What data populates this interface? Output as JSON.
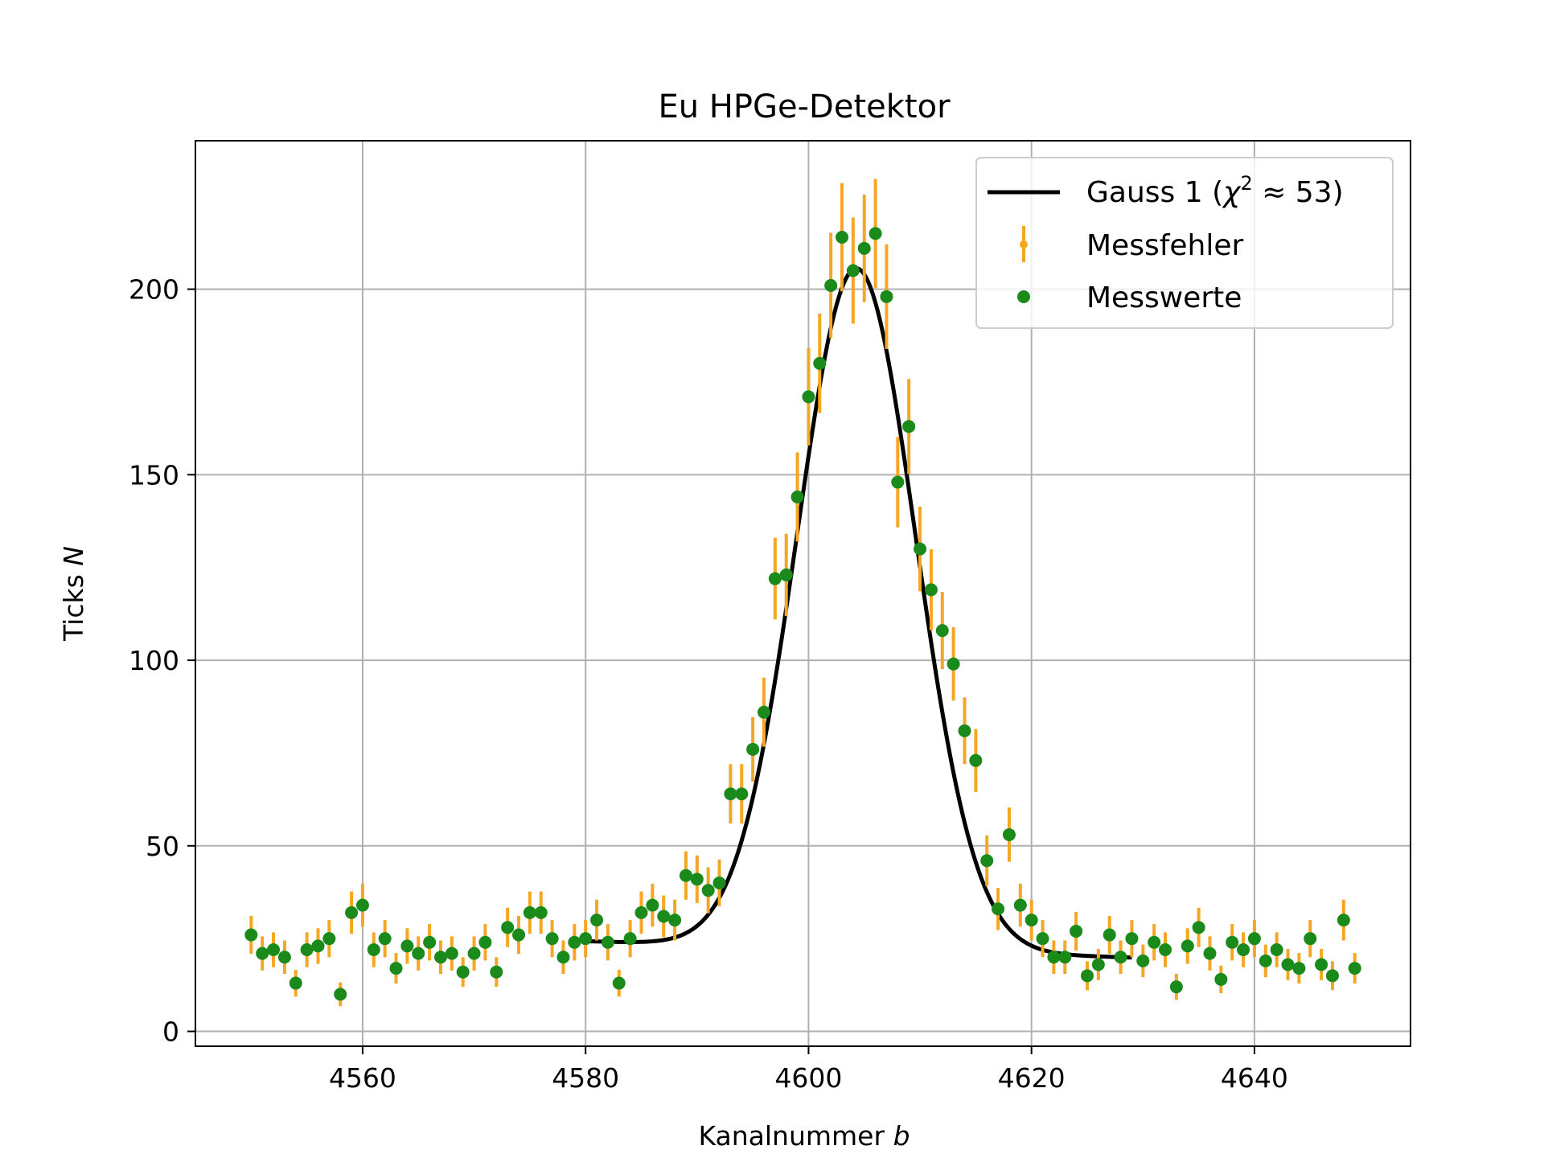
{
  "chart_data": {
    "type": "scatter",
    "title": "Eu HPGe-Detektor",
    "xlabel": "Kanalnummer",
    "xlabel_var": "b",
    "ylabel": "Ticks",
    "ylabel_var": "N",
    "xlim": [
      4545,
      4654
    ],
    "ylim": [
      -4,
      240
    ],
    "xticks": [
      4560,
      4580,
      4600,
      4620,
      4640
    ],
    "yticks": [
      0,
      50,
      100,
      150,
      200
    ],
    "grid": true,
    "legend_position": "top-right",
    "legend": {
      "fit_label_prefix": "Gauss 1 (",
      "fit_label_chi": "χ",
      "fit_label_sup": "2",
      "fit_label_suffix": " ≈ 53)",
      "error_label": "Messfehler",
      "points_label": "Messwerte"
    },
    "colors": {
      "points": "#1a8a1a",
      "errors": "#f5a623",
      "fit": "#000000",
      "grid": "#b0b0b0"
    },
    "series": [
      {
        "name": "Messwerte",
        "kind": "points_with_errors",
        "x": [
          4550,
          4551,
          4552,
          4553,
          4554,
          4555,
          4556,
          4557,
          4558,
          4559,
          4560,
          4561,
          4562,
          4563,
          4564,
          4565,
          4566,
          4567,
          4568,
          4569,
          4570,
          4571,
          4572,
          4573,
          4574,
          4575,
          4576,
          4577,
          4578,
          4579,
          4580,
          4581,
          4582,
          4583,
          4584,
          4585,
          4586,
          4587,
          4588,
          4589,
          4590,
          4591,
          4592,
          4593,
          4594,
          4595,
          4596,
          4597,
          4598,
          4599,
          4600,
          4601,
          4602,
          4603,
          4604,
          4605,
          4606,
          4607,
          4608,
          4609,
          4610,
          4611,
          4612,
          4613,
          4614,
          4615,
          4616,
          4617,
          4618,
          4619,
          4620,
          4621,
          4622,
          4623,
          4624,
          4625,
          4626,
          4627,
          4628,
          4629,
          4630,
          4631,
          4632,
          4633,
          4634,
          4635,
          4636,
          4637,
          4638,
          4639,
          4640,
          4641,
          4642,
          4643,
          4644,
          4645,
          4646,
          4647,
          4648,
          4649
        ],
        "y": [
          26,
          21,
          22,
          20,
          13,
          22,
          23,
          25,
          10,
          32,
          34,
          22,
          25,
          17,
          23,
          21,
          24,
          20,
          21,
          16,
          21,
          24,
          16,
          28,
          26,
          32,
          32,
          25,
          20,
          24,
          25,
          30,
          24,
          13,
          25,
          32,
          34,
          31,
          30,
          42,
          41,
          38,
          40,
          64,
          64,
          76,
          86,
          122,
          123,
          144,
          171,
          180,
          201,
          214,
          205,
          211,
          215,
          198,
          148,
          163,
          130,
          119,
          108,
          99,
          81,
          73,
          46,
          33,
          53,
          34,
          30,
          25,
          20,
          20,
          27,
          15,
          18,
          26,
          20,
          25,
          19,
          24,
          22,
          12,
          23,
          28,
          21,
          14,
          24,
          22,
          25,
          19,
          22,
          18,
          17,
          25,
          18,
          15,
          30,
          17
        ],
        "yerr": [
          5.1,
          4.6,
          4.7,
          4.5,
          3.6,
          4.7,
          4.8,
          5.0,
          3.2,
          5.7,
          5.8,
          4.7,
          5.0,
          4.1,
          4.8,
          4.6,
          4.9,
          4.5,
          4.6,
          4.0,
          4.6,
          4.9,
          4.0,
          5.3,
          5.1,
          5.7,
          5.7,
          5.0,
          4.5,
          4.9,
          5.0,
          5.5,
          4.9,
          3.6,
          5.0,
          5.7,
          5.8,
          5.6,
          5.5,
          6.5,
          6.4,
          6.2,
          6.3,
          8.0,
          8.0,
          8.7,
          9.3,
          11.0,
          11.1,
          12.0,
          13.1,
          13.4,
          14.2,
          14.6,
          14.3,
          14.5,
          14.7,
          14.1,
          12.2,
          12.8,
          11.4,
          10.9,
          10.4,
          9.9,
          9.0,
          8.5,
          6.8,
          5.7,
          7.3,
          5.8,
          5.5,
          5.0,
          4.5,
          4.5,
          5.2,
          3.9,
          4.2,
          5.1,
          4.5,
          5.0,
          4.4,
          4.9,
          4.7,
          3.5,
          4.8,
          5.3,
          4.6,
          3.7,
          4.9,
          4.7,
          5.0,
          4.4,
          4.7,
          4.2,
          4.1,
          5.0,
          4.2,
          3.9,
          5.5,
          4.1
        ]
      },
      {
        "name": "Gauss 1",
        "kind": "fit_curve",
        "model": "A*exp(-(x-mu)^2/(2*sigma^2)) + c0 + c1*(x-4580)",
        "params": {
          "A": 183.5,
          "mu": 4604.3,
          "sigma": 5.33,
          "c0": 24.3,
          "c1": -0.09
        },
        "x_range": [
          4580,
          4629
        ]
      }
    ]
  }
}
